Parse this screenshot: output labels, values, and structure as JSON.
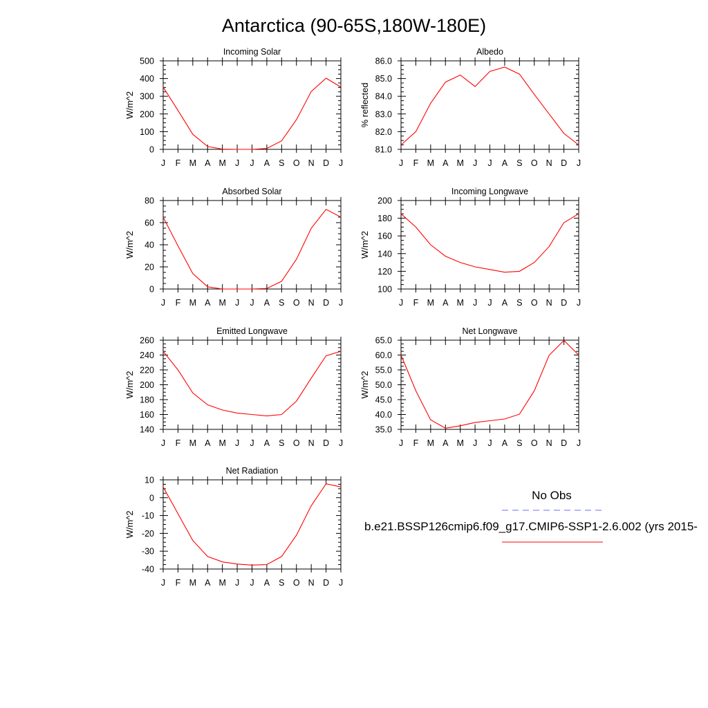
{
  "page": {
    "title": "Antarctica (90-65S,180W-180E)"
  },
  "legend": {
    "obs_label": "No Obs",
    "obs_color": "#6b6bff",
    "model_label": "b.e21.BSSP126cmip6.f09_g17.CMIP6-SSP1-2.6.002 (yrs 2015-",
    "model_color": "#ff0000"
  },
  "chart_data": [
    {
      "type": "line",
      "title": "Incoming Solar",
      "xlabel": "",
      "ylabel": "W/m^2",
      "categories": [
        "J",
        "F",
        "M",
        "A",
        "M",
        "J",
        "J",
        "A",
        "S",
        "O",
        "N",
        "D",
        "J"
      ],
      "ylim": [
        0,
        500
      ],
      "yticks": [
        0,
        100,
        200,
        300,
        400,
        500
      ],
      "ytick_labels": [
        "0",
        "100",
        "200",
        "300",
        "400",
        "500"
      ],
      "series": [
        {
          "values": [
            352,
            220,
            85,
            16,
            1,
            0,
            0,
            5,
            48,
            168,
            327,
            402,
            352
          ]
        }
      ]
    },
    {
      "type": "line",
      "title": "Albedo",
      "xlabel": "",
      "ylabel": "% reflected",
      "categories": [
        "J",
        "F",
        "M",
        "A",
        "M",
        "J",
        "J",
        "A",
        "S",
        "O",
        "N",
        "D",
        "J"
      ],
      "ylim": [
        81,
        86
      ],
      "yticks": [
        81,
        82,
        83,
        84,
        85,
        86
      ],
      "ytick_labels": [
        "81.0",
        "82.0",
        "83.0",
        "84.0",
        "85.0",
        "86.0"
      ],
      "series": [
        {
          "values": [
            81.25,
            82.0,
            83.6,
            84.8,
            85.2,
            84.55,
            85.4,
            85.65,
            85.25,
            84.1,
            83.0,
            81.9,
            81.25
          ]
        }
      ]
    },
    {
      "type": "line",
      "title": "Absorbed Solar",
      "xlabel": "",
      "ylabel": "W/m^2",
      "categories": [
        "J",
        "F",
        "M",
        "A",
        "M",
        "J",
        "J",
        "A",
        "S",
        "O",
        "N",
        "D",
        "J"
      ],
      "ylim": [
        0,
        80
      ],
      "yticks": [
        0,
        20,
        40,
        60,
        80
      ],
      "ytick_labels": [
        "0",
        "20",
        "40",
        "60",
        "80"
      ],
      "series": [
        {
          "values": [
            65,
            39,
            14,
            2,
            0,
            0,
            0,
            0.5,
            7,
            27,
            55,
            72,
            65
          ]
        }
      ]
    },
    {
      "type": "line",
      "title": "Incoming Longwave",
      "xlabel": "",
      "ylabel": "W/m^2",
      "categories": [
        "J",
        "F",
        "M",
        "A",
        "M",
        "J",
        "J",
        "A",
        "S",
        "O",
        "N",
        "D",
        "J"
      ],
      "ylim": [
        100,
        200
      ],
      "yticks": [
        100,
        120,
        140,
        160,
        180,
        200
      ],
      "ytick_labels": [
        "100",
        "120",
        "140",
        "160",
        "180",
        "200"
      ],
      "series": [
        {
          "values": [
            185,
            170,
            150,
            137,
            130,
            125,
            122,
            119,
            120,
            130,
            148,
            175,
            185
          ]
        }
      ]
    },
    {
      "type": "line",
      "title": "Emitted Longwave",
      "xlabel": "",
      "ylabel": "W/m^2",
      "categories": [
        "J",
        "F",
        "M",
        "A",
        "M",
        "J",
        "J",
        "A",
        "S",
        "O",
        "N",
        "D",
        "J"
      ],
      "ylim": [
        140,
        260
      ],
      "yticks": [
        140,
        160,
        180,
        200,
        220,
        240,
        260
      ],
      "ytick_labels": [
        "140",
        "160",
        "180",
        "200",
        "220",
        "240",
        "260"
      ],
      "series": [
        {
          "values": [
            245,
            220,
            189,
            173,
            166,
            162,
            160,
            158,
            160,
            178,
            209,
            239,
            245
          ]
        }
      ]
    },
    {
      "type": "line",
      "title": "Net Longwave",
      "xlabel": "",
      "ylabel": "W/m^2",
      "categories": [
        "J",
        "F",
        "M",
        "A",
        "M",
        "J",
        "J",
        "A",
        "S",
        "O",
        "N",
        "D",
        "J"
      ],
      "ylim": [
        35,
        65
      ],
      "yticks": [
        35,
        40,
        45,
        50,
        55,
        60,
        65
      ],
      "ytick_labels": [
        "35.0",
        "40.0",
        "45.0",
        "50.0",
        "55.0",
        "60.0",
        "65.0"
      ],
      "series": [
        {
          "values": [
            60,
            48,
            38.2,
            35.4,
            36.2,
            37.3,
            37.9,
            38.5,
            40.1,
            48.0,
            59.9,
            64.9,
            60
          ]
        }
      ]
    },
    {
      "type": "line",
      "title": "Net Radiation",
      "xlabel": "",
      "ylabel": "W/m^2",
      "categories": [
        "J",
        "F",
        "M",
        "A",
        "M",
        "J",
        "J",
        "A",
        "S",
        "O",
        "N",
        "D",
        "J"
      ],
      "ylim": [
        -40,
        10
      ],
      "yticks": [
        -40,
        -30,
        -20,
        -10,
        0,
        10
      ],
      "ytick_labels": [
        "-40",
        "-30",
        "-20",
        "-10",
        "0",
        "10"
      ],
      "series": [
        {
          "values": [
            6,
            -9,
            -24,
            -33,
            -36,
            -37.2,
            -37.8,
            -37.5,
            -33,
            -21,
            -4.5,
            7.8,
            6
          ]
        }
      ]
    }
  ]
}
